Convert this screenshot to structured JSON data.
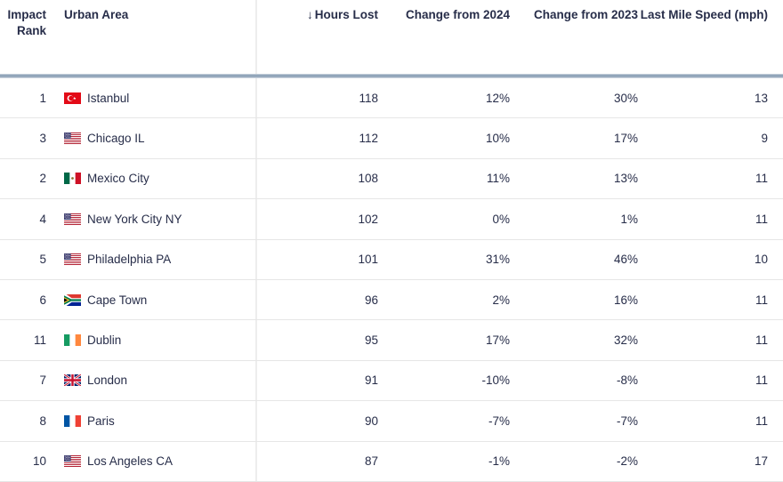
{
  "chart_data": {
    "type": "table",
    "columns": [
      "Impact Rank",
      "Urban Area",
      "Hours Lost",
      "Change from 2024",
      "Change from 2023",
      "Last Mile Speed (mph)"
    ],
    "sort": {
      "column": "Hours Lost",
      "direction": "descending"
    },
    "rows": [
      {
        "rank": "1",
        "city": "Istanbul",
        "country": "turkey",
        "hours_lost": "118",
        "change_from_2024": "12%",
        "change_from_2023": "30%",
        "last_mile_speed_mph": "13"
      },
      {
        "rank": "3",
        "city": "Chicago IL",
        "country": "usa",
        "hours_lost": "112",
        "change_from_2024": "10%",
        "change_from_2023": "17%",
        "last_mile_speed_mph": "9"
      },
      {
        "rank": "2",
        "city": "Mexico City",
        "country": "mexico",
        "hours_lost": "108",
        "change_from_2024": "11%",
        "change_from_2023": "13%",
        "last_mile_speed_mph": "11"
      },
      {
        "rank": "4",
        "city": "New York City NY",
        "country": "usa",
        "hours_lost": "102",
        "change_from_2024": "0%",
        "change_from_2023": "1%",
        "last_mile_speed_mph": "11"
      },
      {
        "rank": "5",
        "city": "Philadelphia PA",
        "country": "usa",
        "hours_lost": "101",
        "change_from_2024": "31%",
        "change_from_2023": "46%",
        "last_mile_speed_mph": "10"
      },
      {
        "rank": "6",
        "city": "Cape Town",
        "country": "south-africa",
        "hours_lost": "96",
        "change_from_2024": "2%",
        "change_from_2023": "16%",
        "last_mile_speed_mph": "11"
      },
      {
        "rank": "11",
        "city": "Dublin",
        "country": "ireland",
        "hours_lost": "95",
        "change_from_2024": "17%",
        "change_from_2023": "32%",
        "last_mile_speed_mph": "11"
      },
      {
        "rank": "7",
        "city": "London",
        "country": "uk",
        "hours_lost": "91",
        "change_from_2024": "-10%",
        "change_from_2023": "-8%",
        "last_mile_speed_mph": "11"
      },
      {
        "rank": "8",
        "city": "Paris",
        "country": "france",
        "hours_lost": "90",
        "change_from_2024": "-7%",
        "change_from_2023": "-7%",
        "last_mile_speed_mph": "11"
      },
      {
        "rank": "10",
        "city": "Los Angeles CA",
        "country": "usa",
        "hours_lost": "87",
        "change_from_2024": "-1%",
        "change_from_2023": "-2%",
        "last_mile_speed_mph": "17"
      }
    ]
  },
  "icons": {
    "sort_descending": "↓"
  },
  "colors": {
    "text": "#272d49",
    "row_border": "#e6e6e6",
    "column_divider": "#ededed",
    "header_rule": "#8ea3b8",
    "background": "#ffffff"
  }
}
